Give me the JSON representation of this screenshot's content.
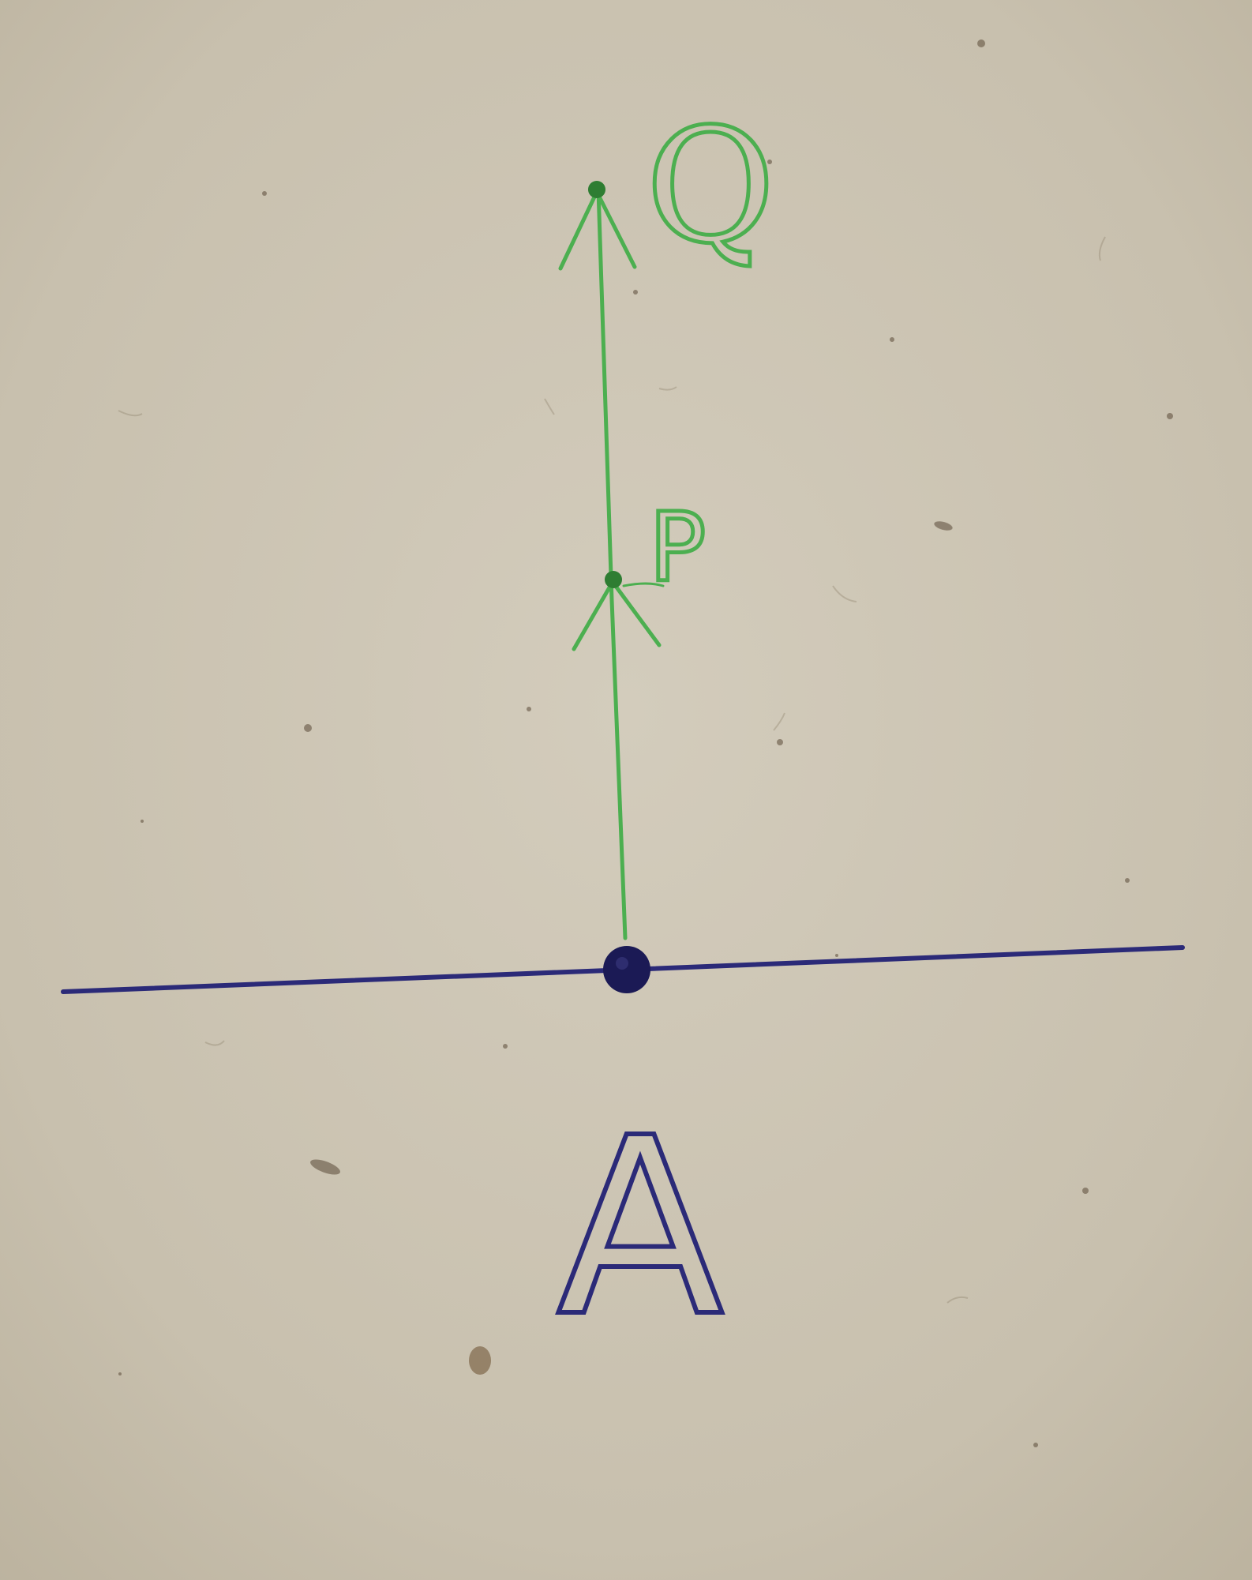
{
  "diagram": {
    "labels": {
      "point_q": "Q",
      "point_p": "P",
      "point_a": "A"
    }
  },
  "colors": {
    "paper": "#ccc4b3",
    "green_ink": "#4caf50",
    "green_dot": "#2e7d32",
    "blue_ink": "#2b2a78",
    "blue_dot": "#1b1a55"
  }
}
